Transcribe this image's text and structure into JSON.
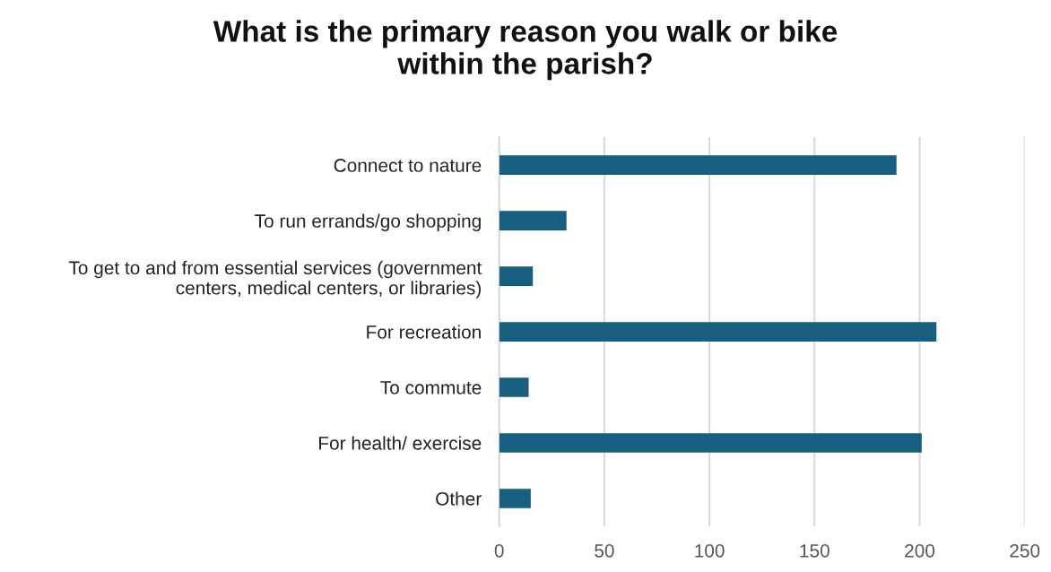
{
  "chart_data": {
    "type": "bar",
    "orientation": "horizontal",
    "title": "What is the primary reason you walk or bike\nwithin the parish?",
    "categories": [
      "Connect to nature",
      "To run errands/go shopping",
      "To get to and from essential services (government\ncenters, medical centers, or libraries)",
      "For recreation",
      "To commute",
      "For health/ exercise",
      "Other"
    ],
    "values": [
      189,
      32,
      16,
      208,
      14,
      201,
      15
    ],
    "color": "#175f80",
    "xlim": [
      0,
      250
    ],
    "xticks": [
      0,
      50,
      100,
      150,
      200,
      250
    ],
    "grid": "x",
    "legend": false
  }
}
